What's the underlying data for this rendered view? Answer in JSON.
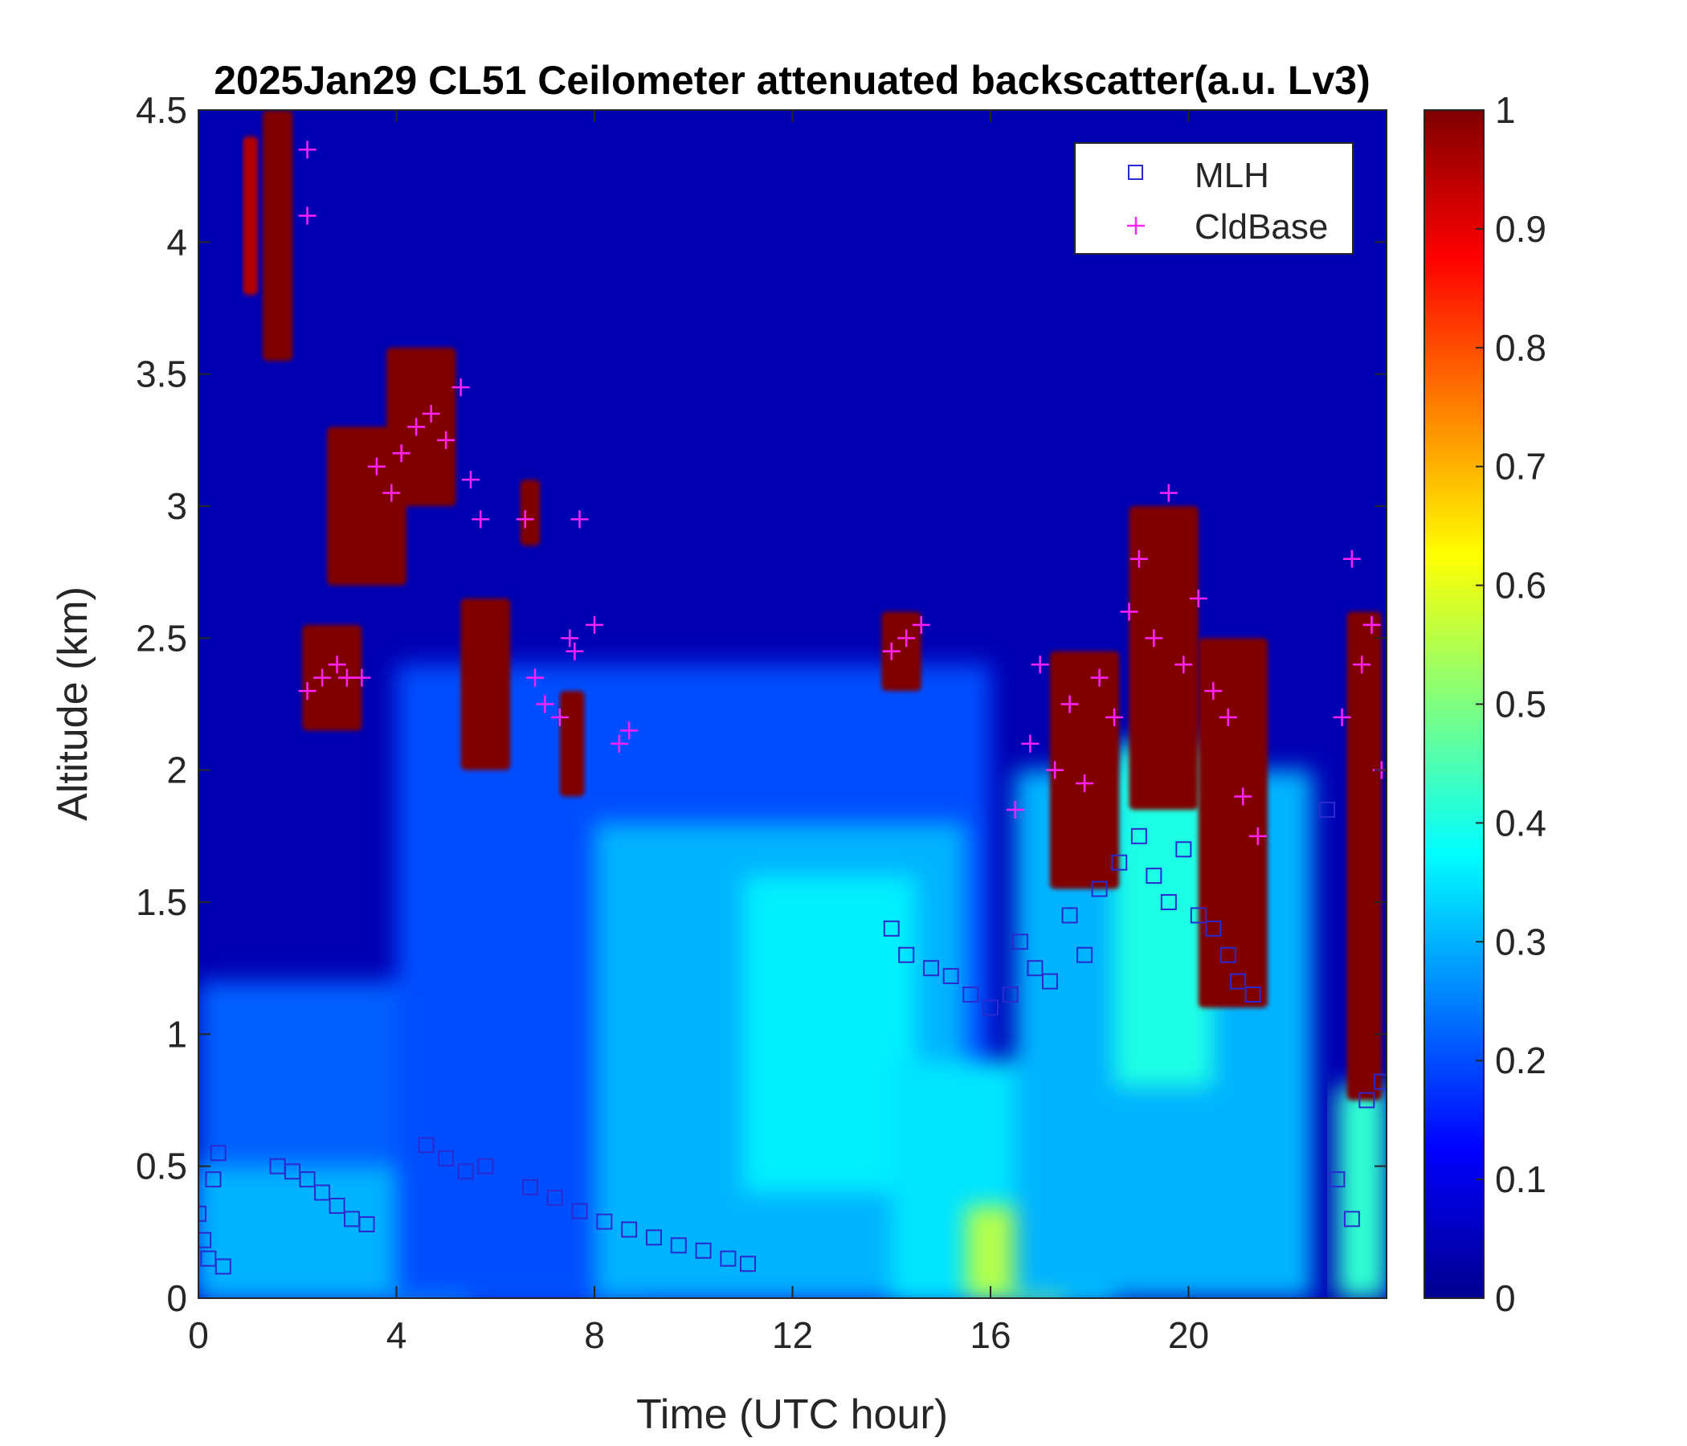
{
  "chart_data": {
    "type": "heatmap",
    "title": "2025Jan29 CL51 Ceilometer attenuated backscatter(a.u. Lv3)",
    "xlabel": "Time (UTC hour)",
    "ylabel": "Altitude (km)",
    "xlim": [
      0,
      24
    ],
    "ylim": [
      0,
      4.5
    ],
    "x_ticks": [
      0,
      4,
      8,
      12,
      16,
      20
    ],
    "x_tick_labels": [
      "0",
      "4",
      "8",
      "12",
      "16",
      "20"
    ],
    "y_ticks": [
      0,
      0.5,
      1,
      1.5,
      2,
      2.5,
      3,
      3.5,
      4,
      4.5
    ],
    "y_tick_labels": [
      "0",
      "0.5",
      "1",
      "1.5",
      "2",
      "2.5",
      "3",
      "3.5",
      "4",
      "4.5"
    ],
    "colorbar": {
      "colormap": "jet",
      "range": [
        0,
        1
      ],
      "ticks": [
        0,
        0.1,
        0.2,
        0.3,
        0.4,
        0.5,
        0.6,
        0.7,
        0.8,
        0.9,
        1
      ],
      "tick_labels": [
        "0",
        "0.1",
        "0.2",
        "0.3",
        "0.4",
        "0.5",
        "0.6",
        "0.7",
        "0.8",
        "0.9",
        "1"
      ]
    },
    "legend": {
      "placement": "top-right",
      "entries": [
        {
          "label": "MLH",
          "marker": "square",
          "color": "#2a2ad0"
        },
        {
          "label": "CldBase",
          "marker": "plus",
          "color": "#ff22ff"
        }
      ]
    },
    "series": [
      {
        "name": "MLH",
        "marker": "square",
        "color": "#2a2ad0",
        "x": [
          0.0,
          0.1,
          0.2,
          0.3,
          0.4,
          0.5,
          1.6,
          1.9,
          2.2,
          2.5,
          2.8,
          3.1,
          3.4,
          4.6,
          5.0,
          5.4,
          5.8,
          6.7,
          7.2,
          7.7,
          8.2,
          8.7,
          9.2,
          9.7,
          10.2,
          10.7,
          11.1,
          14.0,
          14.3,
          14.8,
          15.2,
          15.6,
          16.0,
          16.4,
          16.6,
          16.9,
          17.2,
          17.6,
          17.9,
          18.2,
          18.6,
          19.0,
          19.3,
          19.6,
          19.9,
          20.2,
          20.5,
          20.8,
          21.0,
          21.3,
          22.8,
          23.0,
          23.3,
          23.6,
          23.9
        ],
        "y": [
          0.32,
          0.22,
          0.15,
          0.45,
          0.55,
          0.12,
          0.5,
          0.48,
          0.45,
          0.4,
          0.35,
          0.3,
          0.28,
          0.58,
          0.53,
          0.48,
          0.5,
          0.42,
          0.38,
          0.33,
          0.29,
          0.26,
          0.23,
          0.2,
          0.18,
          0.15,
          0.13,
          1.4,
          1.3,
          1.25,
          1.22,
          1.15,
          1.1,
          1.15,
          1.35,
          1.25,
          1.2,
          1.45,
          1.3,
          1.55,
          1.65,
          1.75,
          1.6,
          1.5,
          1.7,
          1.45,
          1.4,
          1.3,
          1.2,
          1.15,
          1.85,
          0.45,
          0.3,
          0.75,
          0.82
        ]
      },
      {
        "name": "CldBase",
        "marker": "plus",
        "color": "#ff22ff",
        "x": [
          2.2,
          2.2,
          2.2,
          2.5,
          2.8,
          3.0,
          3.3,
          3.6,
          3.9,
          4.1,
          4.4,
          4.7,
          5.0,
          5.3,
          5.5,
          5.7,
          6.6,
          6.8,
          7.0,
          7.3,
          7.5,
          7.6,
          7.7,
          8.0,
          8.5,
          8.7,
          14.0,
          14.3,
          14.6,
          16.5,
          16.8,
          17.0,
          17.3,
          17.6,
          17.9,
          18.2,
          18.5,
          18.8,
          19.0,
          19.3,
          19.6,
          19.9,
          20.2,
          20.5,
          20.8,
          21.1,
          21.4,
          23.1,
          23.3,
          23.5,
          23.7,
          23.9
        ],
        "y": [
          4.35,
          4.1,
          2.3,
          2.35,
          2.4,
          2.35,
          2.35,
          3.15,
          3.05,
          3.2,
          3.3,
          3.35,
          3.25,
          3.45,
          3.1,
          2.95,
          2.95,
          2.35,
          2.25,
          2.2,
          2.5,
          2.45,
          2.95,
          2.55,
          2.1,
          2.15,
          2.45,
          2.5,
          2.55,
          1.85,
          2.1,
          2.4,
          2.0,
          2.25,
          1.95,
          2.35,
          2.2,
          2.6,
          2.8,
          2.5,
          3.05,
          2.4,
          2.65,
          2.3,
          2.2,
          1.9,
          1.75,
          2.2,
          2.8,
          2.4,
          2.55,
          2.0
        ]
      }
    ],
    "backscatter_features": [
      {
        "t0": 0.0,
        "t1": 24.0,
        "z0": 0.0,
        "z1": 4.5,
        "value": 0.04
      },
      {
        "t0": 0.0,
        "t1": 9.0,
        "z0": 0.0,
        "z1": 1.2,
        "value": 0.22
      },
      {
        "t0": 0.0,
        "t1": 5.5,
        "z0": 0.0,
        "z1": 0.5,
        "value": 0.3
      },
      {
        "t0": 4.0,
        "t1": 16.0,
        "z0": 0.0,
        "z1": 2.4,
        "value": 0.2
      },
      {
        "t0": 8.0,
        "t1": 15.5,
        "z0": 0.0,
        "z1": 1.8,
        "value": 0.3
      },
      {
        "t0": 11.0,
        "t1": 14.5,
        "z0": 0.4,
        "z1": 1.6,
        "value": 0.36
      },
      {
        "t0": 14.0,
        "t1": 18.5,
        "z0": 0.0,
        "z1": 0.9,
        "value": 0.35
      },
      {
        "t0": 15.5,
        "t1": 17.5,
        "z0": 0.0,
        "z1": 0.35,
        "value": 0.55
      },
      {
        "t0": 16.5,
        "t1": 22.5,
        "z0": 0.0,
        "z1": 2.0,
        "value": 0.3
      },
      {
        "t0": 18.5,
        "t1": 20.5,
        "z0": 0.8,
        "z1": 2.1,
        "value": 0.4
      },
      {
        "t0": 23.0,
        "t1": 24.0,
        "z0": 0.0,
        "z1": 0.8,
        "value": 0.42
      },
      {
        "t0": 0.9,
        "t1": 1.2,
        "z0": 3.8,
        "z1": 4.4,
        "value": 0.95
      },
      {
        "t0": 1.3,
        "t1": 1.9,
        "z0": 3.55,
        "z1": 4.5,
        "value": 1.0
      },
      {
        "t0": 2.1,
        "t1": 3.3,
        "z0": 2.15,
        "z1": 2.55,
        "value": 1.0
      },
      {
        "t0": 2.6,
        "t1": 4.2,
        "z0": 2.7,
        "z1": 3.3,
        "value": 1.0
      },
      {
        "t0": 3.8,
        "t1": 5.2,
        "z0": 3.0,
        "z1": 3.6,
        "value": 1.0
      },
      {
        "t0": 5.3,
        "t1": 6.3,
        "z0": 2.0,
        "z1": 2.65,
        "value": 1.0
      },
      {
        "t0": 6.5,
        "t1": 6.9,
        "z0": 2.85,
        "z1": 3.1,
        "value": 1.0
      },
      {
        "t0": 7.3,
        "t1": 7.8,
        "z0": 1.9,
        "z1": 2.3,
        "value": 1.0
      },
      {
        "t0": 13.8,
        "t1": 14.6,
        "z0": 2.3,
        "z1": 2.6,
        "value": 1.0
      },
      {
        "t0": 17.2,
        "t1": 18.6,
        "z0": 1.55,
        "z1": 2.45,
        "value": 1.0
      },
      {
        "t0": 18.8,
        "t1": 20.2,
        "z0": 1.85,
        "z1": 3.0,
        "value": 1.0
      },
      {
        "t0": 20.2,
        "t1": 21.6,
        "z0": 1.1,
        "z1": 2.5,
        "value": 1.0
      },
      {
        "t0": 23.2,
        "t1": 23.9,
        "z0": 0.75,
        "z1": 2.6,
        "value": 1.0
      }
    ]
  }
}
